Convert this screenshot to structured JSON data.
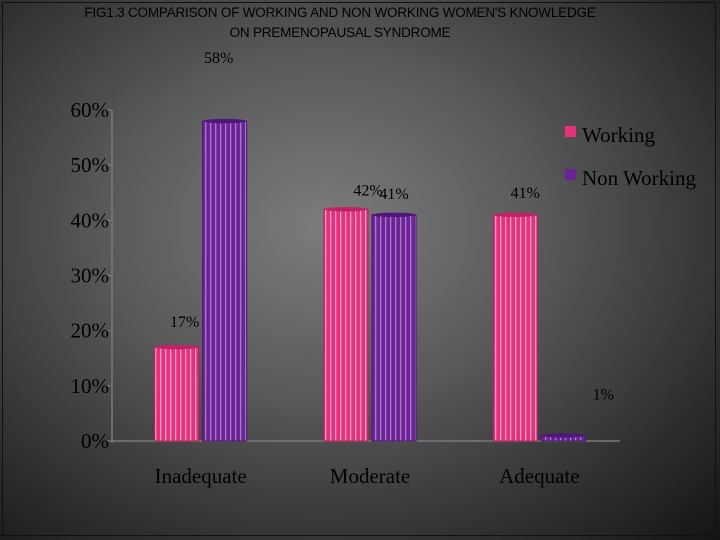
{
  "chart_data": {
    "type": "bar",
    "title": "FIG1.3  COMPARISON OF WORKING AND NON WORKING WOMEN'S KNOWLEDGE ON PREMENOPAUSAL SYNDROME",
    "xlabel": "",
    "ylabel": "",
    "categories": [
      "Inadequate",
      "Moderate",
      "Adequate"
    ],
    "series": [
      {
        "name": "Working",
        "color": "#e8307a",
        "values": [
          17,
          42,
          41
        ],
        "labels": [
          "17%",
          "42%",
          "41%"
        ]
      },
      {
        "name": "Non Working",
        "color": "#6a2496",
        "values": [
          58,
          41,
          1
        ],
        "labels": [
          "58%",
          "41%",
          "1%"
        ]
      }
    ],
    "ylim": [
      0,
      60
    ],
    "yticks": [
      "0%",
      "10%",
      "20%",
      "30%",
      "40%",
      "50%",
      "60%"
    ],
    "legend": "right",
    "grid": false
  }
}
